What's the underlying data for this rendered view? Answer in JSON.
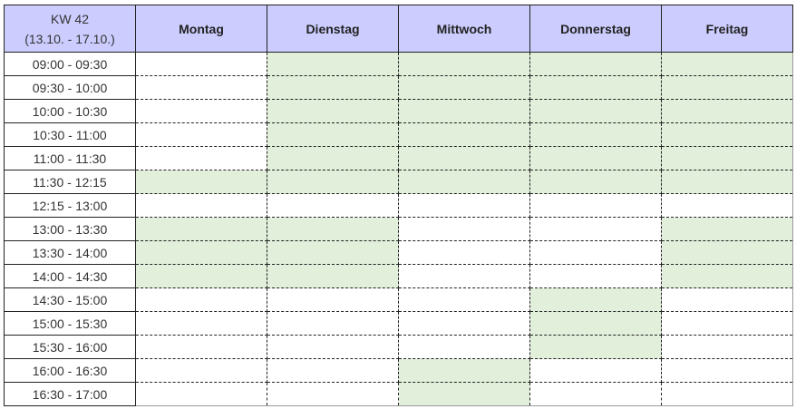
{
  "header": {
    "week": "KW 42",
    "range": "(13.10. - 17.10.)",
    "days": [
      "Montag",
      "Dienstag",
      "Mittwoch",
      "Donnerstag",
      "Freitag"
    ]
  },
  "colors": {
    "header": "#ccccff",
    "available": "#e2efda"
  },
  "slots": [
    "09:00 - 09:30",
    "09:30 - 10:00",
    "10:00 - 10:30",
    "10:30 - 11:00",
    "11:00 - 11:30",
    "11:30 - 12:15",
    "12:15 - 13:00",
    "13:00 - 13:30",
    "13:30 - 14:00",
    "14:00 - 14:30",
    "14:30 - 15:00",
    "15:00 - 15:30",
    "15:30 - 16:00",
    "16:00 - 16:30",
    "16:30 - 17:00"
  ],
  "available": [
    [
      0,
      1,
      1,
      1,
      1
    ],
    [
      0,
      1,
      1,
      1,
      1
    ],
    [
      0,
      1,
      1,
      1,
      1
    ],
    [
      0,
      1,
      1,
      1,
      1
    ],
    [
      0,
      1,
      1,
      1,
      1
    ],
    [
      1,
      1,
      1,
      1,
      1
    ],
    [
      0,
      0,
      0,
      0,
      0
    ],
    [
      1,
      1,
      0,
      0,
      1
    ],
    [
      1,
      1,
      0,
      0,
      1
    ],
    [
      1,
      1,
      0,
      0,
      1
    ],
    [
      0,
      0,
      0,
      1,
      0
    ],
    [
      0,
      0,
      0,
      1,
      0
    ],
    [
      0,
      0,
      0,
      1,
      0
    ],
    [
      0,
      0,
      1,
      0,
      0
    ],
    [
      0,
      0,
      1,
      0,
      0
    ]
  ]
}
